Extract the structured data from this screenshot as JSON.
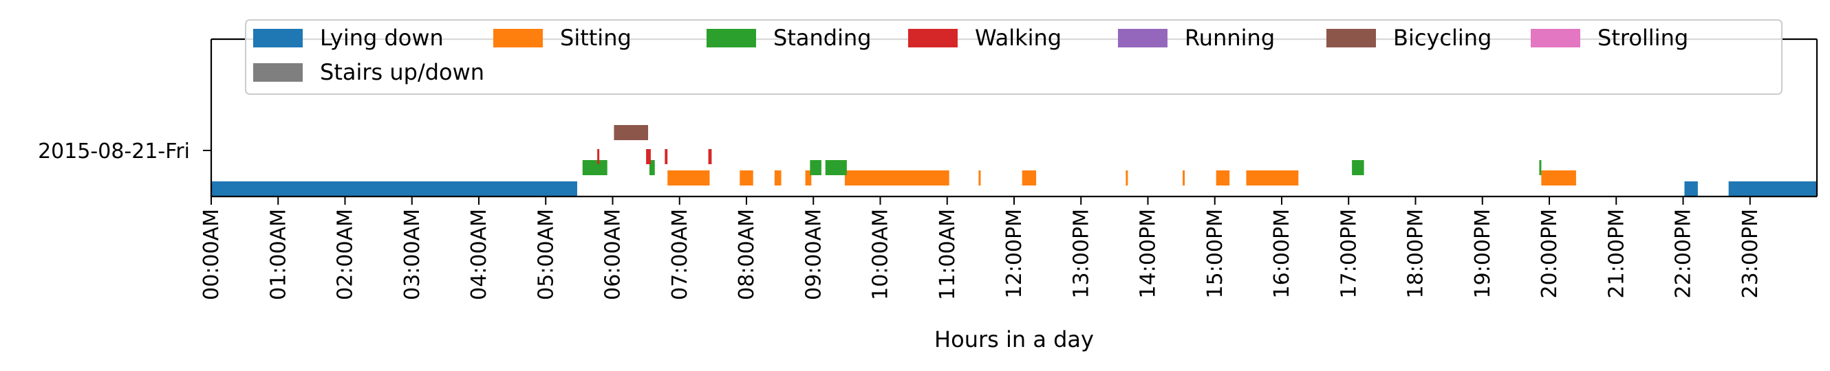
{
  "chart_data": {
    "type": "timeline",
    "title": "",
    "xlabel": "Hours in a day",
    "ylabel": "",
    "xlim": [
      0,
      24
    ],
    "row_label": "2015-08-21-Fri",
    "x_ticks": [
      {
        "value": 0,
        "label": "00:00AM"
      },
      {
        "value": 1,
        "label": "01:00AM"
      },
      {
        "value": 2,
        "label": "02:00AM"
      },
      {
        "value": 3,
        "label": "03:00AM"
      },
      {
        "value": 4,
        "label": "04:00AM"
      },
      {
        "value": 5,
        "label": "05:00AM"
      },
      {
        "value": 6,
        "label": "06:00AM"
      },
      {
        "value": 7,
        "label": "07:00AM"
      },
      {
        "value": 8,
        "label": "08:00AM"
      },
      {
        "value": 9,
        "label": "09:00AM"
      },
      {
        "value": 10,
        "label": "10:00AM"
      },
      {
        "value": 11,
        "label": "11:00AM"
      },
      {
        "value": 12,
        "label": "12:00PM"
      },
      {
        "value": 13,
        "label": "13:00PM"
      },
      {
        "value": 14,
        "label": "14:00PM"
      },
      {
        "value": 15,
        "label": "15:00PM"
      },
      {
        "value": 16,
        "label": "16:00PM"
      },
      {
        "value": 17,
        "label": "17:00PM"
      },
      {
        "value": 18,
        "label": "18:00PM"
      },
      {
        "value": 19,
        "label": "19:00PM"
      },
      {
        "value": 20,
        "label": "20:00PM"
      },
      {
        "value": 21,
        "label": "21:00PM"
      },
      {
        "value": 22,
        "label": "22:00PM"
      },
      {
        "value": 23,
        "label": "23:00PM"
      }
    ],
    "legend_position": "top",
    "series": [
      {
        "name": "Lying down",
        "color": "#1f77b4",
        "level": 0,
        "intervals": [
          [
            0.0,
            5.47
          ],
          [
            22.02,
            22.22
          ],
          [
            22.68,
            24.0
          ]
        ]
      },
      {
        "name": "Sitting",
        "color": "#ff7f0e",
        "level": 1,
        "intervals": [
          [
            6.82,
            7.45
          ],
          [
            7.9,
            8.1
          ],
          [
            8.42,
            8.52
          ],
          [
            8.88,
            8.97
          ],
          [
            9.47,
            11.03
          ],
          [
            11.47,
            11.5
          ],
          [
            12.12,
            12.33
          ],
          [
            13.67,
            13.7
          ],
          [
            14.52,
            14.55
          ],
          [
            15.02,
            15.22
          ],
          [
            15.47,
            16.25
          ],
          [
            19.88,
            20.4
          ]
        ]
      },
      {
        "name": "Standing",
        "color": "#2ca02c",
        "level": 2,
        "intervals": [
          [
            5.55,
            5.92
          ],
          [
            6.55,
            6.63
          ],
          [
            8.95,
            9.12
          ],
          [
            9.18,
            9.5
          ],
          [
            17.05,
            17.23
          ],
          [
            19.85,
            19.88
          ]
        ]
      },
      {
        "name": "Walking",
        "color": "#d62728",
        "level": 3,
        "intervals": [
          [
            5.77,
            5.8
          ],
          [
            6.5,
            6.57
          ],
          [
            6.78,
            6.82
          ],
          [
            7.43,
            7.48
          ]
        ]
      },
      {
        "name": "Running",
        "color": "#9467bd",
        "level": 4,
        "intervals": []
      },
      {
        "name": "Bicycling",
        "color": "#8c564b",
        "level": 5,
        "intervals": [
          [
            6.02,
            6.53
          ]
        ]
      },
      {
        "name": "Strolling",
        "color": "#e377c2",
        "level": 6,
        "intervals": []
      },
      {
        "name": "Stairs up/down",
        "color": "#7f7f7f",
        "level": 7,
        "intervals": []
      }
    ]
  }
}
